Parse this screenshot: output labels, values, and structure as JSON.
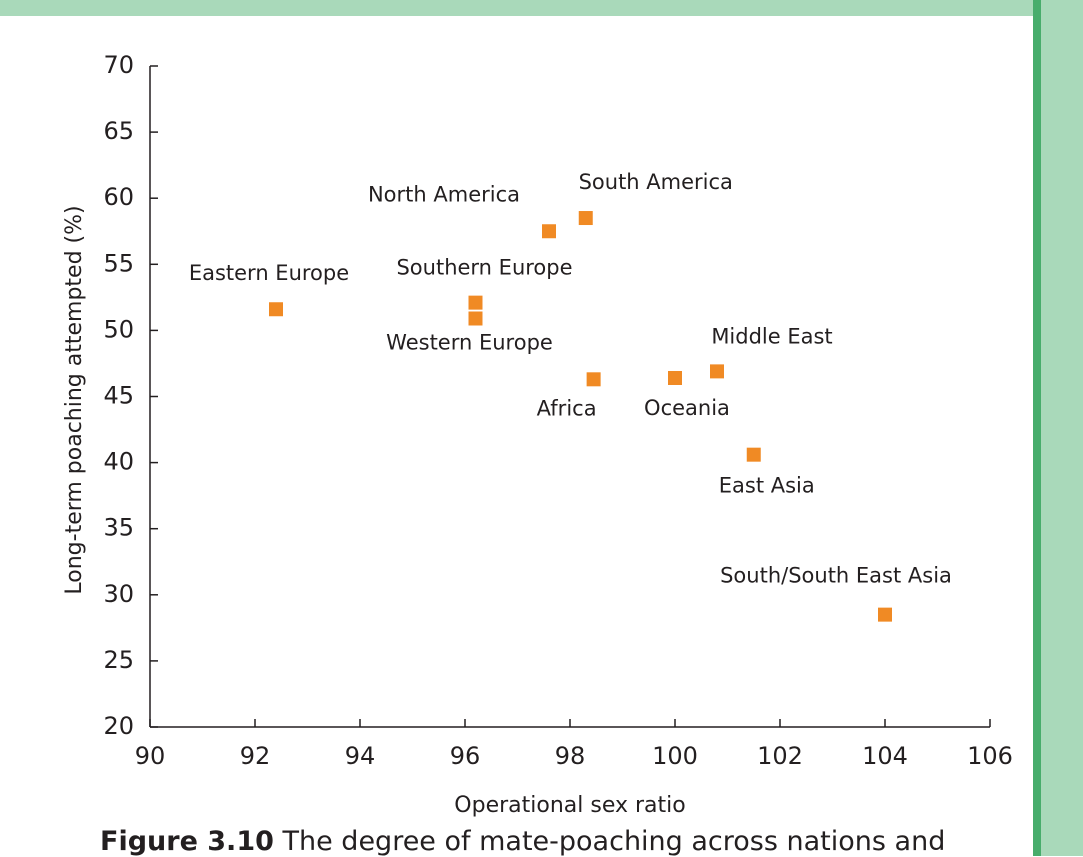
{
  "chart_data": {
    "type": "scatter",
    "xlabel": "Operational sex ratio",
    "ylabel": "Long-term poaching attempted (%)",
    "labels": [
      "Eastern Europe",
      "Southern Europe",
      "Western Europe",
      "North America",
      "South America",
      "Africa",
      "Oceania",
      "Middle East",
      "East Asia",
      "South/South East Asia"
    ],
    "x": [
      92.4,
      96.2,
      96.2,
      97.6,
      98.3,
      98.45,
      100.0,
      100.8,
      101.5,
      104.0
    ],
    "values": [
      51.6,
      52.1,
      50.9,
      57.5,
      58.5,
      46.3,
      46.4,
      46.9,
      40.6,
      28.5
    ],
    "color": "#f08a24",
    "xlim": [
      90,
      106
    ],
    "xticks": [
      90,
      92,
      94,
      96,
      98,
      100,
      102,
      104,
      106
    ],
    "ylim": [
      20,
      70
    ],
    "yticks": [
      20,
      25,
      30,
      35,
      40,
      45,
      50,
      55,
      60,
      65,
      70
    ]
  },
  "caption": {
    "label": "Figure 3.10",
    "text": "The degree of mate-poaching across nations and"
  }
}
